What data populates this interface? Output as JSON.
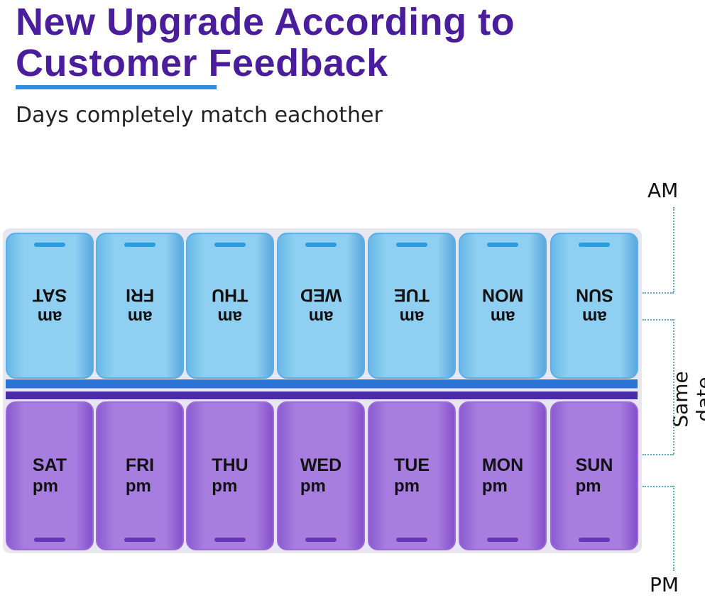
{
  "headline": {
    "line1": "New Upgrade According to",
    "line2": "Customer Feedback"
  },
  "subtitle": "Days completely match eachother",
  "colors": {
    "title": "#4a1d9c",
    "underline": "#2f8ee0",
    "am_lid": "#8fd0f2",
    "pm_lid": "#a87de0"
  },
  "days": [
    "SAT",
    "FRI",
    "THU",
    "WED",
    "TUE",
    "MON",
    "SUN"
  ],
  "am_label": "am",
  "pm_label": "pm",
  "annotations": {
    "am": "AM",
    "pm": "PM",
    "same": "Same date"
  }
}
